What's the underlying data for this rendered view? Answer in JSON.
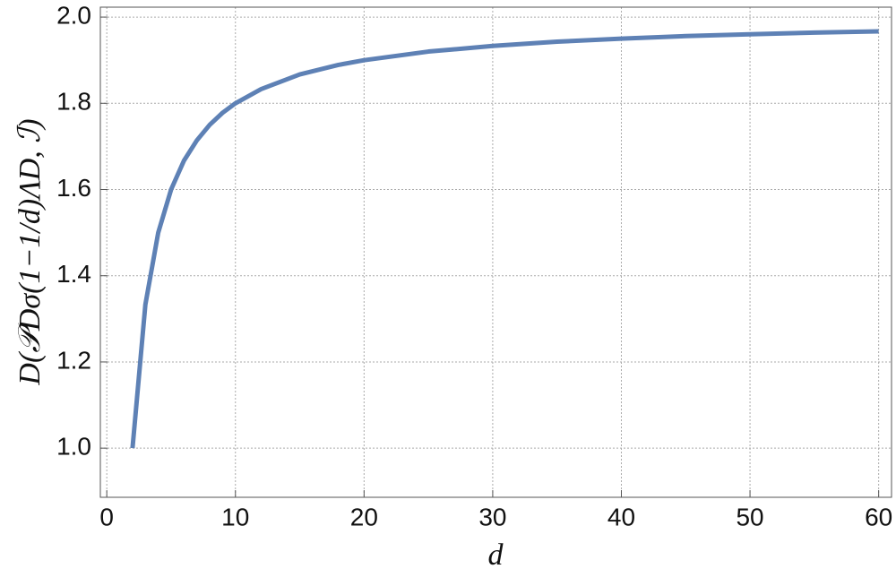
{
  "chart_data": {
    "type": "line",
    "x_label": "d",
    "y_label": "D(𝒫Dσ(1−1/d)ΛD, ℐ)",
    "x": [
      2,
      3,
      4,
      5,
      6,
      7,
      8,
      9,
      10,
      12,
      15,
      18,
      20,
      25,
      30,
      35,
      40,
      45,
      50,
      55,
      60
    ],
    "series": [
      {
        "color": "#5e81b5",
        "values": [
          1.0,
          1.333,
          1.5,
          1.6,
          1.667,
          1.714,
          1.75,
          1.778,
          1.8,
          1.833,
          1.867,
          1.889,
          1.9,
          1.92,
          1.933,
          1.943,
          1.95,
          1.956,
          1.96,
          1.964,
          1.967
        ]
      }
    ],
    "xlim": [
      -0.5,
      61
    ],
    "ylim": [
      0.886,
      2.023
    ],
    "xticks": [
      0,
      10,
      20,
      30,
      40,
      50,
      60
    ],
    "yticks": [
      {
        "value": 1.0,
        "label": "1.0"
      },
      1.2,
      1.4,
      1.6,
      1.8,
      {
        "value": 2.0,
        "label": "2.0"
      }
    ],
    "grid": true
  }
}
